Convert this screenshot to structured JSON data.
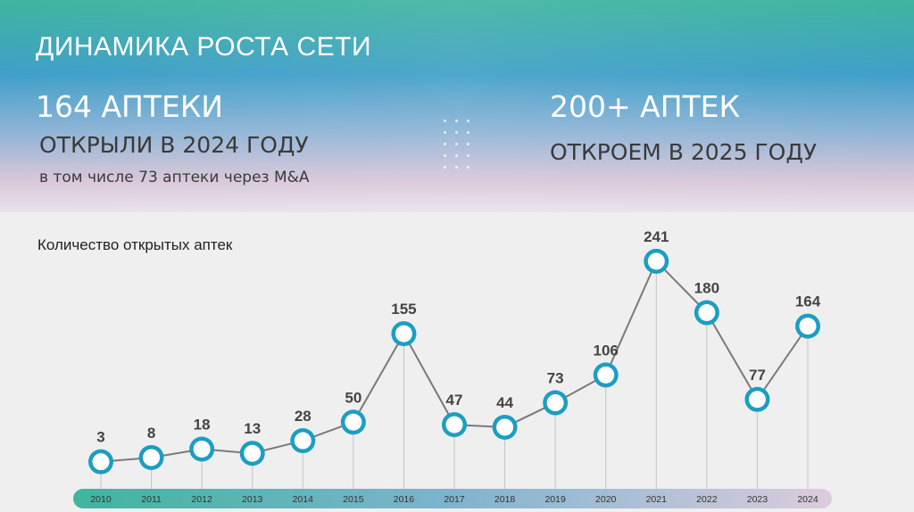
{
  "header": {
    "title": "ДИНАМИКА РОСТА СЕТИ",
    "left_big": "164 АПТЕКИ",
    "left_mid": "ОТКРЫЛИ В 2024 ГОДУ",
    "left_small": "в том числе 73 аптеки через M&A",
    "right_big": "200+ АПТЕК",
    "right_mid": "ОТКРОЕМ В 2025 ГОДУ"
  },
  "colors": {
    "line": "#7a7a7a",
    "marker_fill": "#1b9ec2",
    "marker_inner": "#ffffff",
    "axis_bar_start": "#3fb59e",
    "axis_bar_end": "#d8c7d8"
  },
  "chart_data": {
    "type": "line",
    "title": "Количество открытых аптек",
    "xlabel": "",
    "ylabel": "",
    "categories": [
      "2010",
      "2011",
      "2012",
      "2013",
      "2014",
      "2015",
      "2016",
      "2017",
      "2018",
      "2019",
      "2020",
      "2021",
      "2022",
      "2023",
      "2024"
    ],
    "series": [
      {
        "values": [
          3,
          8,
          18,
          13,
          28,
          50,
          155,
          47,
          44,
          73,
          106,
          241,
          180,
          77,
          164
        ]
      }
    ],
    "data_labels": true,
    "grid": false,
    "legend": "none"
  }
}
